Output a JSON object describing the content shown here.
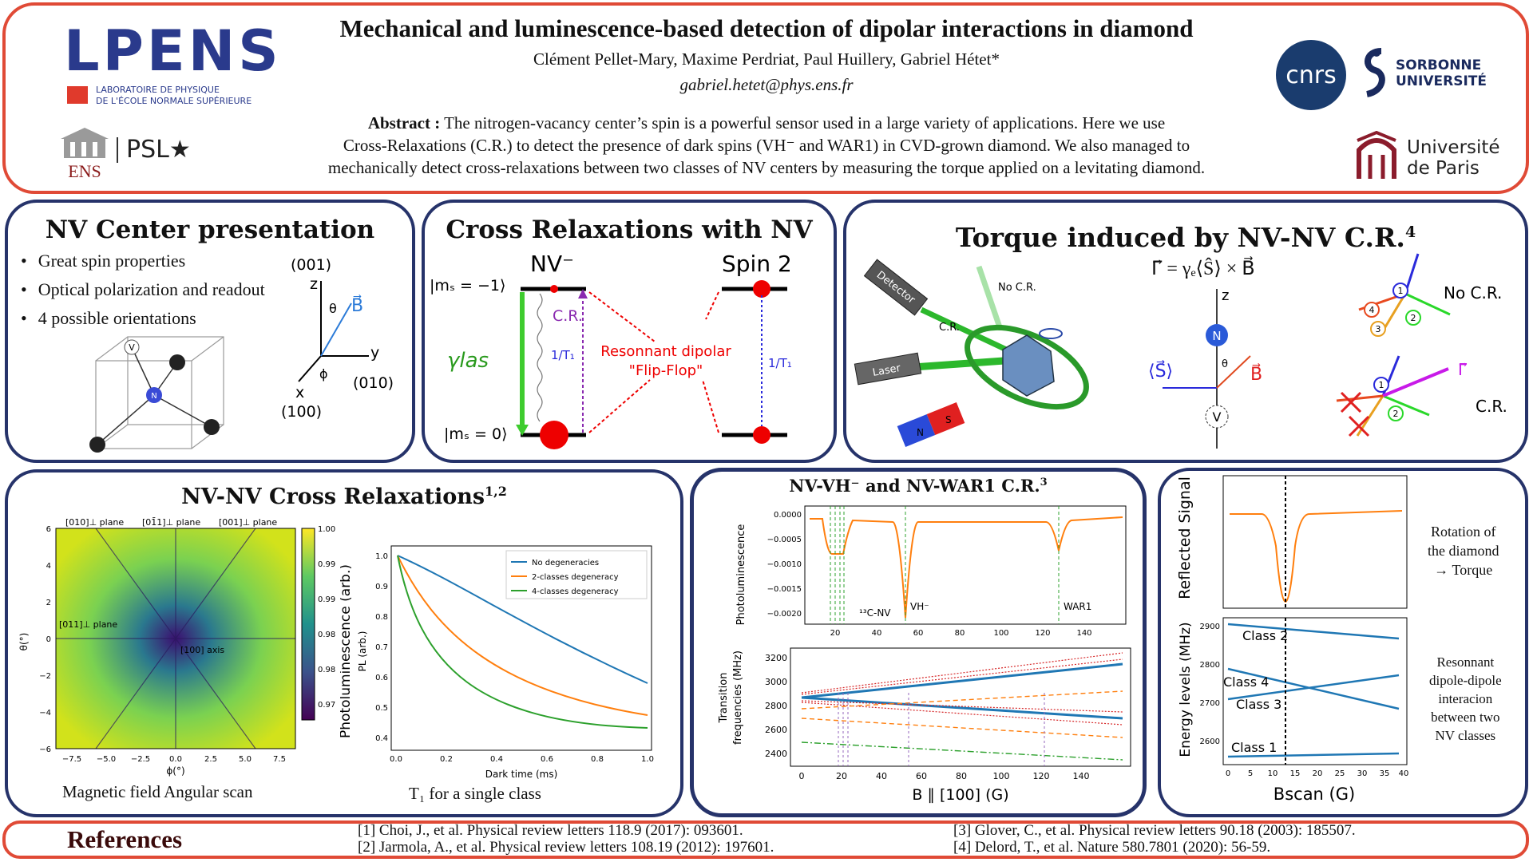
{
  "header": {
    "title": "Mechanical and luminescence-based detection of dipolar interactions in diamond",
    "authors": "Clément Pellet-Mary, Maxime Perdriat, Paul Huillery, Gabriel Hétet*",
    "email": "gabriel.hetet@phys.ens.fr",
    "abstract_label": "Abstract :",
    "abstract_lines": [
      "The nitrogen-vacancy center’s spin is a powerful sensor used in a large variety of applications. Here we use",
      "Cross-Relaxations (C.R.) to detect the presence of dark spins (VH⁻ and WAR1) in CVD-grown diamond. We also managed to",
      "mechanically detect cross-relaxations between two classes of NV centers by measuring the torque applied on a levitating diamond."
    ]
  },
  "logos": {
    "lpens_name": "LPENS",
    "lpens_sub1": "LABORATOIRE DE PHYSIQUE",
    "lpens_sub2": "DE L'ÉCOLE NORMALE SUPÉRIEURE",
    "ens": "ENS",
    "psl": "PSL★",
    "cnrs": "cnrs",
    "sorbonne1": "SORBONNE",
    "sorbonne2": "UNIVERSITÉ",
    "paris1": "Université",
    "paris2": "de Paris"
  },
  "nv_presentation": {
    "title": "NV Center presentation",
    "bullets": [
      "Great spin properties",
      "Optical polarization and readout",
      "4 possible orientations"
    ],
    "axis_001": "(001)",
    "axis_010": "(010)",
    "axis_100": "(100)",
    "z": "z",
    "y": "y",
    "x": "x",
    "theta": "θ",
    "phi": "ϕ",
    "B": "B⃗",
    "V": "V",
    "N": "N",
    "C": "C"
  },
  "cross_relax": {
    "title": "Cross Relaxations with NV",
    "nv_label": "NV⁻",
    "spin2_label": "Spin 2",
    "ms_minus1": "|mₛ = −1⟩",
    "ms_0": "|mₛ = 0⟩",
    "gamma_las": "γlas",
    "cr": "C.R.",
    "one_over_t1": "1/T₁",
    "resonant_line1": "Resonnant dipolar",
    "resonant_line2": "\"Flip-Flop\""
  },
  "torque": {
    "title": "Torque induced by NV-NV C.R.",
    "title_sup": "4",
    "equation": "Γ⃗ = γₑ⟨Ŝ⟩ × B⃗",
    "detector": "Detector",
    "no_cr_beam": "No C.R.",
    "cr_beam": "C.R.",
    "laser": "Laser",
    "magnet_n": "N",
    "magnet_s": "S",
    "z": "z",
    "s_label": "⟨S⃗⟩",
    "b_label": "B⃗",
    "theta": "θ",
    "N": "N",
    "V": "V",
    "no_cr_label": "No C.R.",
    "cr_label": "C.R.",
    "gamma_label": "Γ⃗",
    "class_nums": [
      "1",
      "2",
      "3",
      "4"
    ]
  },
  "nvnv": {
    "title": "NV-NV Cross Relaxations",
    "title_sup": "1,2",
    "heatmap_caption": "Magnetic field Angular scan",
    "t1_caption": "T₁ for a single class",
    "heat_labels": {
      "plane010": "[010]⊥ plane",
      "plane01m1": "[01̄1]⊥ plane",
      "plane001": "[001]⊥ plane",
      "plane011": "[011]⊥ plane",
      "axis100": "[100] axis",
      "ylabel": "θ(°)",
      "xlabel": "ϕ(°)",
      "yticks": [
        "6",
        "4",
        "2",
        "0",
        "−2",
        "−4",
        "−6"
      ],
      "xticks": [
        "−7.5",
        "−5.0",
        "−2.5",
        "0.0",
        "2.5",
        "5.0",
        "7.5"
      ],
      "cbar_ticks": [
        "1.000",
        "0.995",
        "0.990",
        "0.985",
        "0.980",
        "0.975"
      ]
    },
    "t1_plot": {
      "ylabel_outer": "Photoluminescence (arb.)",
      "ylabel_inner": "PL (arb.)",
      "xlabel": "Dark time (ms)",
      "xticks": [
        "0.0",
        "0.2",
        "0.4",
        "0.6",
        "0.8",
        "1.0"
      ],
      "yticks": [
        "1.0",
        "0.9",
        "0.8",
        "0.7",
        "0.6",
        "0.5",
        "0.4"
      ],
      "legend": [
        "No degeneracies",
        "2-classes degeneracy",
        "4-classes degeneracy"
      ]
    }
  },
  "vh_war": {
    "title": "NV-VH⁻ and NV-WAR1 C.R.",
    "title_sup": "3",
    "pl_ylabel": "Photoluminescence",
    "pl_yticks": [
      "0.0000",
      "−0.0005",
      "−0.0010",
      "−0.0015",
      "−0.0020"
    ],
    "pl_xticks": [
      "20",
      "40",
      "60",
      "80",
      "100",
      "120",
      "140"
    ],
    "lbl_13c": "¹³C-NV",
    "lbl_vh": "VH⁻",
    "lbl_war": "WAR1",
    "tr_ylabel1": "Transition",
    "tr_ylabel2": "frequencies (MHz)",
    "tr_yticks": [
      "3200",
      "3000",
      "2800",
      "2600",
      "2400"
    ],
    "tr_xticks": [
      "0",
      "20",
      "40",
      "60",
      "80",
      "100",
      "120",
      "140"
    ],
    "xlabel": "B ∥ [100] (G)"
  },
  "torque_plots": {
    "top_ylabel": "Reflected Signal",
    "bottom_ylabel": "Energy levels (MHz)",
    "yticks": [
      "2900",
      "2800",
      "2700",
      "2600"
    ],
    "xticks": [
      "0",
      "5",
      "10",
      "15",
      "20",
      "25",
      "30",
      "35",
      "40"
    ],
    "xlabel": "Bscan (G)",
    "classes": [
      "Class 2",
      "Class 4",
      "Class 3",
      "Class 1"
    ],
    "side_top": [
      "Rotation of",
      "the diamond",
      "→ Torque"
    ],
    "side_bottom": [
      "Resonnant",
      "dipole-dipole",
      "interacion",
      "between two",
      "NV classes"
    ]
  },
  "references": {
    "title": "References",
    "left": [
      "[1] Choi, J., et al. Physical review letters 118.9 (2017): 093601.",
      "[2] Jarmola, A., et al. Physical review letters 108.19 (2012): 197601."
    ],
    "right": [
      "[3] Glover, C., et al. Physical review letters 90.18 (2003): 185507.",
      "[4] Delord, T., et al. Nature 580.7801 (2020): 56-59."
    ]
  },
  "colors": {
    "accent_red": "#e04a36",
    "navy": "#26336a",
    "blue_series": "#1f77b4",
    "orange_series": "#ff7f0e",
    "green_series": "#2ca02c"
  }
}
